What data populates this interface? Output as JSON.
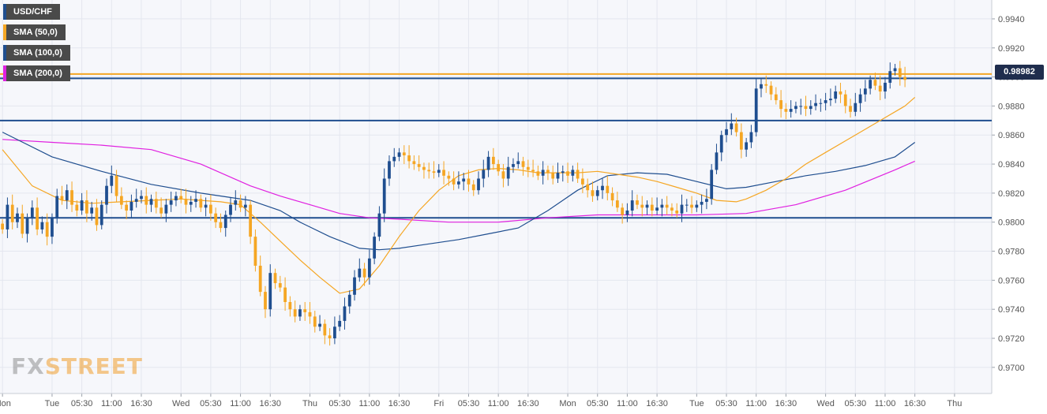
{
  "legend": [
    {
      "label": "USD/CHF",
      "color": "#1f4e8f"
    },
    {
      "label": "SMA (50,0)",
      "color": "#f5a623"
    },
    {
      "label": "SMA (100,0)",
      "color": "#1f4e8f"
    },
    {
      "label": "SMA (200,0)",
      "color": "#e020e0"
    }
  ],
  "price_tag": "0.98982",
  "watermark": {
    "fx": "FX",
    "street": "STREET"
  },
  "chart_data": {
    "type": "line",
    "title": "",
    "xlabel": "",
    "ylabel": "",
    "ylim": [
      0.9682,
      0.9953
    ],
    "y_ticks": [
      "0.9940",
      "0.9920",
      "0.9900",
      "0.9880",
      "0.9860",
      "0.9840",
      "0.9820",
      "0.9800",
      "0.9780",
      "0.9760",
      "0.9740",
      "0.9720",
      "0.9700"
    ],
    "x_ticks": [
      "Mon",
      "Tue",
      "05:30",
      "11:00",
      "16:30",
      "Wed",
      "05:30",
      "11:00",
      "16:30",
      "Thu",
      "05:30",
      "11:00",
      "16:30",
      "Fri",
      "05:30",
      "11:00",
      "16:30",
      "Mon",
      "05:30",
      "11:00",
      "16:30",
      "Tue",
      "05:30",
      "11:00",
      "16:30",
      "Wed",
      "05:30",
      "11:00",
      "16:30",
      "Thu"
    ],
    "x_tick_index": [
      0,
      10,
      16,
      22,
      28,
      36,
      42,
      48,
      54,
      62,
      68,
      74,
      80,
      88,
      94,
      100,
      106,
      114,
      120,
      126,
      132,
      140,
      146,
      152,
      158,
      166,
      172,
      178,
      184,
      192
    ],
    "price_series": {
      "name": "USD/CHF",
      "values": [
        0.9795,
        0.9812,
        0.98,
        0.9806,
        0.9792,
        0.9803,
        0.981,
        0.9795,
        0.98,
        0.979,
        0.9803,
        0.9818,
        0.9815,
        0.9822,
        0.9812,
        0.9808,
        0.9815,
        0.9806,
        0.981,
        0.9798,
        0.9812,
        0.9825,
        0.9832,
        0.9818,
        0.9812,
        0.9808,
        0.9814,
        0.9816,
        0.9818,
        0.9812,
        0.9816,
        0.981,
        0.9806,
        0.9812,
        0.9815,
        0.9818,
        0.9816,
        0.9812,
        0.9814,
        0.9816,
        0.981,
        0.9812,
        0.9806,
        0.98,
        0.9796,
        0.9805,
        0.9812,
        0.9815,
        0.981,
        0.9812,
        0.979,
        0.977,
        0.9752,
        0.974,
        0.9765,
        0.9758,
        0.9755,
        0.9745,
        0.974,
        0.9735,
        0.974,
        0.9738,
        0.9735,
        0.9728,
        0.973,
        0.9722,
        0.972,
        0.9728,
        0.9732,
        0.9742,
        0.975,
        0.9762,
        0.9768,
        0.9762,
        0.9775,
        0.979,
        0.9806,
        0.983,
        0.9842,
        0.9845,
        0.9848,
        0.9846,
        0.9842,
        0.984,
        0.9838,
        0.9836,
        0.9835,
        0.9834,
        0.9836,
        0.9832,
        0.983,
        0.9826,
        0.9828,
        0.983,
        0.9826,
        0.9822,
        0.983,
        0.9836,
        0.9845,
        0.984,
        0.9835,
        0.983,
        0.9838,
        0.984,
        0.9842,
        0.9838,
        0.9836,
        0.9835,
        0.9832,
        0.9836,
        0.9834,
        0.983,
        0.9834,
        0.9835,
        0.9832,
        0.9836,
        0.983,
        0.9826,
        0.9822,
        0.9818,
        0.9822,
        0.9825,
        0.982,
        0.9815,
        0.981,
        0.9805,
        0.9808,
        0.9815,
        0.9812,
        0.981,
        0.9812,
        0.9808,
        0.981,
        0.9812,
        0.981,
        0.9808,
        0.9806,
        0.9812,
        0.9812,
        0.981,
        0.9812,
        0.9814,
        0.9816,
        0.9836,
        0.9848,
        0.986,
        0.9864,
        0.9868,
        0.9862,
        0.985,
        0.9855,
        0.9862,
        0.9892,
        0.9895,
        0.9894,
        0.9888,
        0.9884,
        0.9878,
        0.9876,
        0.9878,
        0.988,
        0.988,
        0.9878,
        0.988,
        0.9882,
        0.9882,
        0.9884,
        0.9885,
        0.989,
        0.9888,
        0.988,
        0.9876,
        0.9882,
        0.9888,
        0.9892,
        0.9898,
        0.9894,
        0.989,
        0.9896,
        0.9904,
        0.9906,
        0.99,
        0.9898
      ]
    },
    "sma50": {
      "name": "SMA (50,0)",
      "x": [
        0,
        6,
        12,
        18,
        24,
        30,
        36,
        40,
        44,
        48,
        52,
        56,
        60,
        64,
        68,
        72,
        76,
        80,
        84,
        88,
        92,
        96,
        100,
        104,
        108,
        112,
        116,
        120,
        124,
        128,
        132,
        136,
        140,
        144,
        148,
        150,
        154,
        158,
        162,
        166,
        170,
        174,
        178,
        182,
        184
      ],
      "y": [
        0.985,
        0.9825,
        0.9815,
        0.9813,
        0.9814,
        0.9815,
        0.9816,
        0.9815,
        0.9814,
        0.9812,
        0.98,
        0.9787,
        0.9774,
        0.9762,
        0.9751,
        0.9754,
        0.977,
        0.979,
        0.9808,
        0.9822,
        0.9832,
        0.9836,
        0.9837,
        0.9836,
        0.9834,
        0.9834,
        0.9834,
        0.9835,
        0.9833,
        0.9831,
        0.9828,
        0.9824,
        0.982,
        0.9815,
        0.9814,
        0.9816,
        0.9822,
        0.983,
        0.984,
        0.9848,
        0.9856,
        0.9864,
        0.9872,
        0.988,
        0.9886
      ]
    },
    "sma100": {
      "name": "SMA (100,0)",
      "x": [
        0,
        10,
        20,
        30,
        40,
        50,
        56,
        60,
        66,
        72,
        76,
        80,
        86,
        92,
        98,
        104,
        110,
        116,
        122,
        128,
        134,
        140,
        146,
        150,
        156,
        162,
        168,
        174,
        180,
        184
      ],
      "y": [
        0.9862,
        0.9845,
        0.9835,
        0.9826,
        0.982,
        0.9815,
        0.9808,
        0.98,
        0.979,
        0.9782,
        0.9781,
        0.9782,
        0.9785,
        0.9788,
        0.9792,
        0.9796,
        0.9808,
        0.9822,
        0.9832,
        0.9834,
        0.9833,
        0.9828,
        0.9823,
        0.9824,
        0.9828,
        0.9832,
        0.9835,
        0.9839,
        0.9845,
        0.9855
      ]
    },
    "sma200": {
      "name": "SMA (200,0)",
      "x": [
        0,
        10,
        20,
        30,
        40,
        50,
        56,
        62,
        68,
        74,
        80,
        90,
        100,
        110,
        120,
        130,
        140,
        150,
        160,
        170,
        180,
        184
      ],
      "y": [
        0.9857,
        0.9855,
        0.9853,
        0.985,
        0.984,
        0.9825,
        0.9818,
        0.9812,
        0.9806,
        0.9803,
        0.9802,
        0.98,
        0.98,
        0.9803,
        0.9805,
        0.9805,
        0.9805,
        0.9806,
        0.9812,
        0.9822,
        0.9836,
        0.9842
      ]
    },
    "horizontal_levels": [
      {
        "value": 0.9902,
        "color": "#f5a623"
      },
      {
        "value": 0.9899,
        "color": "#1f4e8f"
      },
      {
        "value": 0.987,
        "color": "#1f4e8f"
      },
      {
        "value": 0.9803,
        "color": "#1f4e8f"
      }
    ],
    "colors": {
      "up": "#1f4e8f",
      "down": "#f5a623"
    },
    "grid": true,
    "legend_placement": "top-left"
  }
}
